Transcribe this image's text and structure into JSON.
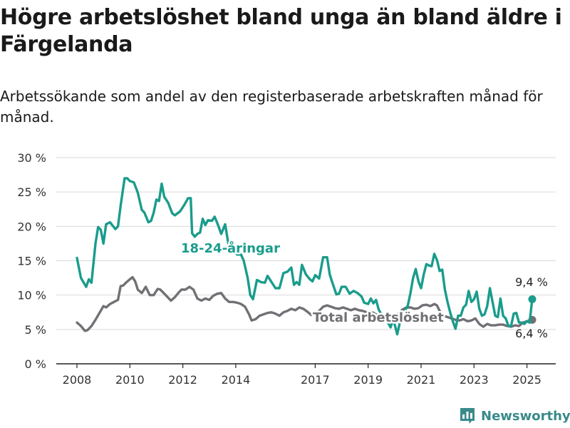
{
  "header": {
    "title": "Högre arbetslöshet bland unga än bland äldre i Färgelanda",
    "subtitle": "Arbetssökande som andel av den registerbaserade arbetskraften månad för månad."
  },
  "brand": {
    "name": "Newsworthy",
    "icon": "newsworthy-logo-icon"
  },
  "chart_data": {
    "type": "line",
    "title": "Högre arbetslöshet bland unga än bland äldre i Färgelanda",
    "subtitle": "Arbetssökande som andel av den registerbaserade arbetskraften månad för månad.",
    "xlabel": "",
    "ylabel": "",
    "xlim": [
      2008,
      2025.5
    ],
    "ylim": [
      0,
      30
    ],
    "grid": true,
    "y_ticks": [
      0,
      5,
      10,
      15,
      20,
      25,
      30
    ],
    "y_tick_labels": [
      "0 %",
      "5 %",
      "10 %",
      "15 %",
      "20 %",
      "25 %",
      "30 %"
    ],
    "x_ticks": [
      2008,
      2010,
      2012,
      2014,
      2017,
      2019,
      2021,
      2023,
      2025
    ],
    "x_tick_labels": [
      "2008",
      "2010",
      "2012",
      "2014",
      "2017",
      "2019",
      "2021",
      "2023",
      "2025"
    ],
    "series": [
      {
        "name": "18-24-åringar",
        "color": "#1a9c8c",
        "end_label": "9,4 %",
        "points": [
          [
            2008.0,
            15.4
          ],
          [
            2008.15,
            12.5
          ],
          [
            2008.35,
            11.2
          ],
          [
            2008.45,
            12.3
          ],
          [
            2008.55,
            11.8
          ],
          [
            2008.7,
            17.5
          ],
          [
            2008.8,
            19.9
          ],
          [
            2008.9,
            19.5
          ],
          [
            2009.0,
            17.5
          ],
          [
            2009.1,
            20.3
          ],
          [
            2009.25,
            20.6
          ],
          [
            2009.45,
            19.6
          ],
          [
            2009.55,
            20.0
          ],
          [
            2009.65,
            23.0
          ],
          [
            2009.8,
            27.0
          ],
          [
            2009.9,
            27.0
          ],
          [
            2010.0,
            26.6
          ],
          [
            2010.15,
            26.4
          ],
          [
            2010.3,
            24.9
          ],
          [
            2010.45,
            22.4
          ],
          [
            2010.55,
            22.0
          ],
          [
            2010.7,
            20.6
          ],
          [
            2010.8,
            20.8
          ],
          [
            2010.9,
            22.0
          ],
          [
            2011.0,
            23.9
          ],
          [
            2011.1,
            23.7
          ],
          [
            2011.2,
            26.2
          ],
          [
            2011.3,
            24.3
          ],
          [
            2011.45,
            23.4
          ],
          [
            2011.6,
            21.9
          ],
          [
            2011.7,
            21.6
          ],
          [
            2011.9,
            22.2
          ],
          [
            2012.05,
            23.1
          ],
          [
            2012.2,
            24.1
          ],
          [
            2012.3,
            24.1
          ],
          [
            2012.35,
            19.0
          ],
          [
            2012.45,
            18.5
          ],
          [
            2012.55,
            18.9
          ],
          [
            2012.65,
            19.1
          ],
          [
            2012.75,
            21.1
          ],
          [
            2012.85,
            20.2
          ],
          [
            2012.95,
            20.9
          ],
          [
            2013.1,
            20.8
          ],
          [
            2013.2,
            21.4
          ],
          [
            2013.3,
            20.5
          ],
          [
            2013.45,
            18.9
          ],
          [
            2013.6,
            20.3
          ],
          [
            2013.75,
            16.8
          ],
          [
            2013.9,
            16.5
          ],
          [
            2014.05,
            15.9
          ],
          [
            2014.2,
            15.9
          ],
          [
            2014.3,
            15.0
          ],
          [
            2014.45,
            12.5
          ],
          [
            2014.55,
            10.0
          ],
          [
            2014.65,
            9.4
          ],
          [
            2014.8,
            12.2
          ],
          [
            2014.95,
            11.9
          ],
          [
            2015.1,
            11.8
          ],
          [
            2015.2,
            12.8
          ],
          [
            2015.35,
            11.9
          ],
          [
            2015.5,
            11.0
          ],
          [
            2015.65,
            11.0
          ],
          [
            2015.8,
            13.2
          ],
          [
            2015.95,
            13.4
          ],
          [
            2016.1,
            14.0
          ],
          [
            2016.2,
            11.5
          ],
          [
            2016.3,
            11.9
          ],
          [
            2016.4,
            11.5
          ],
          [
            2016.5,
            14.4
          ],
          [
            2016.65,
            13.0
          ],
          [
            2016.8,
            12.3
          ],
          [
            2016.9,
            12.0
          ],
          [
            2017.0,
            12.9
          ],
          [
            2017.15,
            12.4
          ],
          [
            2017.3,
            15.5
          ],
          [
            2017.45,
            15.5
          ],
          [
            2017.55,
            13.0
          ],
          [
            2017.65,
            11.8
          ],
          [
            2017.8,
            10.1
          ],
          [
            2017.9,
            10.2
          ],
          [
            2018.0,
            11.2
          ],
          [
            2018.15,
            11.2
          ],
          [
            2018.3,
            10.2
          ],
          [
            2018.45,
            10.6
          ],
          [
            2018.6,
            10.3
          ],
          [
            2018.75,
            9.8
          ],
          [
            2018.85,
            8.9
          ],
          [
            2019.0,
            8.7
          ],
          [
            2019.1,
            9.5
          ],
          [
            2019.2,
            8.8
          ],
          [
            2019.3,
            9.3
          ],
          [
            2019.4,
            7.9
          ],
          [
            2019.5,
            7.2
          ],
          [
            2019.6,
            6.8
          ],
          [
            2019.75,
            6.0
          ],
          [
            2019.85,
            5.3
          ],
          [
            2019.95,
            6.5
          ],
          [
            2020.1,
            4.3
          ],
          [
            2020.2,
            6.0
          ],
          [
            2020.35,
            7.4
          ],
          [
            2020.5,
            8.5
          ],
          [
            2020.6,
            10.3
          ],
          [
            2020.7,
            12.5
          ],
          [
            2020.8,
            13.8
          ],
          [
            2020.9,
            12.0
          ],
          [
            2021.0,
            11.0
          ],
          [
            2021.1,
            13.0
          ],
          [
            2021.2,
            14.5
          ],
          [
            2021.3,
            14.3
          ],
          [
            2021.4,
            14.2
          ],
          [
            2021.5,
            16.0
          ],
          [
            2021.6,
            15.1
          ],
          [
            2021.7,
            13.5
          ],
          [
            2021.8,
            13.7
          ],
          [
            2021.9,
            10.8
          ],
          [
            2022.0,
            9.0
          ],
          [
            2022.1,
            7.5
          ],
          [
            2022.2,
            6.2
          ],
          [
            2022.3,
            5.1
          ],
          [
            2022.4,
            7.0
          ],
          [
            2022.5,
            7.0
          ],
          [
            2022.6,
            8.2
          ],
          [
            2022.7,
            8.6
          ],
          [
            2022.8,
            10.6
          ],
          [
            2022.9,
            9.0
          ],
          [
            2023.0,
            9.4
          ],
          [
            2023.1,
            10.5
          ],
          [
            2023.2,
            8.0
          ],
          [
            2023.3,
            7.0
          ],
          [
            2023.4,
            7.2
          ],
          [
            2023.5,
            8.4
          ],
          [
            2023.6,
            11.0
          ],
          [
            2023.7,
            9.0
          ],
          [
            2023.8,
            7.0
          ],
          [
            2023.9,
            6.8
          ],
          [
            2024.0,
            9.5
          ],
          [
            2024.1,
            7.0
          ],
          [
            2024.2,
            6.6
          ],
          [
            2024.3,
            5.5
          ],
          [
            2024.4,
            5.5
          ],
          [
            2024.5,
            7.3
          ],
          [
            2024.6,
            7.4
          ],
          [
            2024.7,
            6.0
          ],
          [
            2024.8,
            6.0
          ],
          [
            2024.9,
            5.8
          ],
          [
            2025.0,
            6.2
          ],
          [
            2025.1,
            6.0
          ],
          [
            2025.2,
            9.4
          ]
        ]
      },
      {
        "name": "Total arbetslöshet",
        "color": "#707075",
        "end_label": "6,4 %",
        "points": [
          [
            2008.0,
            6.0
          ],
          [
            2008.15,
            5.5
          ],
          [
            2008.3,
            4.8
          ],
          [
            2008.4,
            4.9
          ],
          [
            2008.55,
            5.5
          ],
          [
            2008.7,
            6.4
          ],
          [
            2008.85,
            7.4
          ],
          [
            2009.0,
            8.4
          ],
          [
            2009.1,
            8.2
          ],
          [
            2009.25,
            8.7
          ],
          [
            2009.4,
            9.0
          ],
          [
            2009.55,
            9.3
          ],
          [
            2009.65,
            11.3
          ],
          [
            2009.75,
            11.4
          ],
          [
            2009.85,
            11.8
          ],
          [
            2010.0,
            12.3
          ],
          [
            2010.1,
            12.6
          ],
          [
            2010.2,
            12.0
          ],
          [
            2010.3,
            10.8
          ],
          [
            2010.45,
            10.3
          ],
          [
            2010.6,
            11.2
          ],
          [
            2010.75,
            10.0
          ],
          [
            2010.9,
            10.0
          ],
          [
            2011.05,
            10.9
          ],
          [
            2011.15,
            10.8
          ],
          [
            2011.3,
            10.2
          ],
          [
            2011.45,
            9.6
          ],
          [
            2011.55,
            9.2
          ],
          [
            2011.7,
            9.7
          ],
          [
            2011.85,
            10.4
          ],
          [
            2011.95,
            10.8
          ],
          [
            2012.1,
            10.8
          ],
          [
            2012.25,
            11.2
          ],
          [
            2012.4,
            10.8
          ],
          [
            2012.55,
            9.5
          ],
          [
            2012.7,
            9.2
          ],
          [
            2012.85,
            9.5
          ],
          [
            2013.0,
            9.3
          ],
          [
            2013.15,
            9.9
          ],
          [
            2013.3,
            10.2
          ],
          [
            2013.45,
            10.3
          ],
          [
            2013.6,
            9.5
          ],
          [
            2013.75,
            9.0
          ],
          [
            2013.9,
            9.0
          ],
          [
            2014.05,
            8.9
          ],
          [
            2014.2,
            8.7
          ],
          [
            2014.35,
            8.3
          ],
          [
            2014.5,
            7.2
          ],
          [
            2014.6,
            6.3
          ],
          [
            2014.75,
            6.5
          ],
          [
            2014.9,
            7.0
          ],
          [
            2015.05,
            7.2
          ],
          [
            2015.2,
            7.4
          ],
          [
            2015.35,
            7.5
          ],
          [
            2015.5,
            7.3
          ],
          [
            2015.65,
            7.0
          ],
          [
            2015.8,
            7.5
          ],
          [
            2015.95,
            7.7
          ],
          [
            2016.1,
            8.0
          ],
          [
            2016.25,
            7.8
          ],
          [
            2016.4,
            8.2
          ],
          [
            2016.55,
            8.0
          ],
          [
            2016.7,
            7.6
          ],
          [
            2016.85,
            7.1
          ],
          [
            2017.0,
            7.3
          ],
          [
            2017.15,
            7.7
          ],
          [
            2017.3,
            8.3
          ],
          [
            2017.45,
            8.5
          ],
          [
            2017.6,
            8.3
          ],
          [
            2017.75,
            8.1
          ],
          [
            2017.9,
            8.0
          ],
          [
            2018.05,
            8.2
          ],
          [
            2018.2,
            8.0
          ],
          [
            2018.35,
            7.8
          ],
          [
            2018.5,
            8.0
          ],
          [
            2018.65,
            7.8
          ],
          [
            2018.8,
            7.7
          ],
          [
            2018.95,
            7.5
          ],
          [
            2019.1,
            7.6
          ],
          [
            2019.25,
            7.3
          ],
          [
            2019.4,
            7.0
          ],
          [
            2019.55,
            6.8
          ],
          [
            2019.7,
            6.7
          ],
          [
            2019.85,
            6.5
          ],
          [
            2020.0,
            6.9
          ],
          [
            2020.15,
            7.3
          ],
          [
            2020.3,
            7.9
          ],
          [
            2020.45,
            8.2
          ],
          [
            2020.6,
            8.2
          ],
          [
            2020.75,
            8.0
          ],
          [
            2020.9,
            8.1
          ],
          [
            2021.05,
            8.5
          ],
          [
            2021.2,
            8.6
          ],
          [
            2021.35,
            8.4
          ],
          [
            2021.5,
            8.7
          ],
          [
            2021.6,
            8.5
          ],
          [
            2021.7,
            7.7
          ],
          [
            2021.85,
            7.0
          ],
          [
            2022.0,
            6.8
          ],
          [
            2022.15,
            6.6
          ],
          [
            2022.3,
            6.4
          ],
          [
            2022.45,
            6.3
          ],
          [
            2022.6,
            6.5
          ],
          [
            2022.75,
            6.2
          ],
          [
            2022.9,
            6.3
          ],
          [
            2023.05,
            6.6
          ],
          [
            2023.2,
            5.8
          ],
          [
            2023.35,
            5.4
          ],
          [
            2023.5,
            5.8
          ],
          [
            2023.65,
            5.6
          ],
          [
            2023.8,
            5.6
          ],
          [
            2023.95,
            5.7
          ],
          [
            2024.1,
            5.7
          ],
          [
            2024.25,
            5.5
          ],
          [
            2024.4,
            5.4
          ],
          [
            2024.55,
            5.6
          ],
          [
            2024.7,
            5.5
          ],
          [
            2024.85,
            6.0
          ],
          [
            2025.0,
            6.2
          ],
          [
            2025.1,
            6.3
          ],
          [
            2025.2,
            6.4
          ]
        ]
      }
    ]
  }
}
